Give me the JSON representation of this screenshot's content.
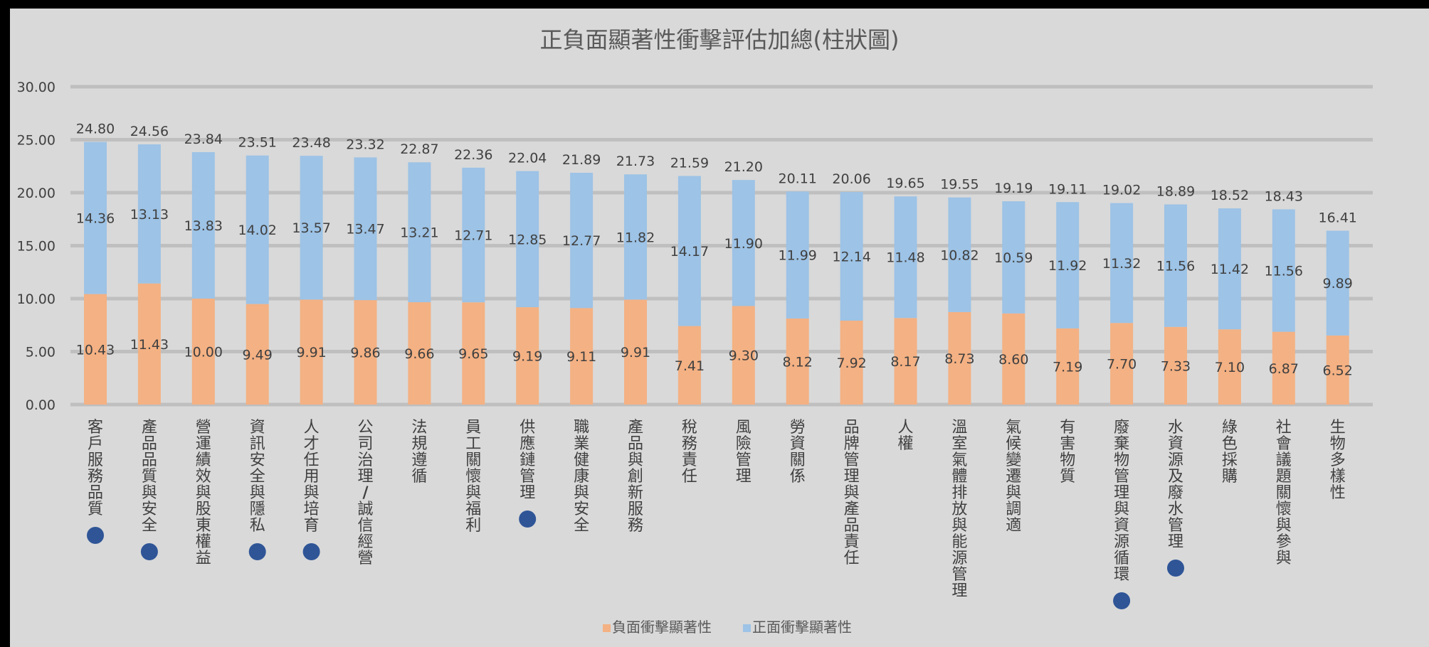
{
  "colors": {
    "negative": "#f4b183",
    "positive": "#9dc3e6",
    "grid": "#bfbfbf",
    "marker": "#2f5597",
    "background": "#d9d9d9"
  },
  "chart_data": {
    "type": "bar",
    "stacked": true,
    "title": "正負面顯著性衝擊評估加總(柱狀圖)",
    "xlabel": "",
    "ylabel": "",
    "ylim": [
      0,
      30
    ],
    "yticks": [
      "0.00",
      "5.00",
      "10.00",
      "15.00",
      "20.00",
      "25.00",
      "30.00"
    ],
    "grid": true,
    "legend_position": "bottom",
    "categories": [
      "客戶服務品質",
      "產品品質與安全",
      "營運績效與股東權益",
      "資訊安全與隱私",
      "人才任用與培育",
      "公司治理/誠信經營",
      "法規遵循",
      "員工關懷與福利",
      "供應鏈管理",
      "職業健康與安全",
      "產品與創新服務",
      "稅務責任",
      "風險管理",
      "勞資關係",
      "品牌管理與產品責任",
      "人權",
      "溫室氣體排放與能源管理",
      "氣候變遷與調適",
      "有害物質",
      "廢棄物管理與資源循環",
      "水資源及廢水管理",
      "綠色採購",
      "社會議題關懷與參與",
      "生物多樣性"
    ],
    "series": [
      {
        "name": "負面衝擊顯著性",
        "values": [
          10.43,
          11.43,
          10.0,
          9.49,
          9.91,
          9.86,
          9.66,
          9.65,
          9.19,
          9.11,
          9.91,
          7.41,
          9.3,
          8.12,
          7.92,
          8.17,
          8.73,
          8.6,
          7.19,
          7.7,
          7.33,
          7.1,
          6.87,
          6.52
        ],
        "labels": [
          "10.43",
          "11.43",
          "10.00",
          "9.49",
          "9.91",
          "9.86",
          "9.66",
          "9.65",
          "9.19",
          "9.11",
          "9.91",
          "7.41",
          "9.30",
          "8.12",
          "7.92",
          "8.17",
          "8.73",
          "8.60",
          "7.19",
          "7.70",
          "7.33",
          "7.10",
          "6.87",
          "6.52"
        ]
      },
      {
        "name": "正面衝擊顯著性",
        "values": [
          14.36,
          13.13,
          13.83,
          14.02,
          13.57,
          13.47,
          13.21,
          12.71,
          12.85,
          12.77,
          11.82,
          14.17,
          11.9,
          11.99,
          12.14,
          11.48,
          10.82,
          10.59,
          11.92,
          11.32,
          11.56,
          11.42,
          11.56,
          9.89
        ],
        "labels": [
          "14.36",
          "13.13",
          "13.83",
          "14.02",
          "13.57",
          "13.47",
          "13.21",
          "12.71",
          "12.85",
          "12.77",
          "11.82",
          "14.17",
          "11.90",
          "11.99",
          "12.14",
          "11.48",
          "10.82",
          "10.59",
          "11.92",
          "11.32",
          "11.56",
          "11.42",
          "11.56",
          "9.89"
        ]
      }
    ],
    "totals": [
      "24.80",
      "24.56",
      "23.84",
      "23.51",
      "23.48",
      "23.32",
      "22.87",
      "22.36",
      "22.04",
      "21.89",
      "21.73",
      "21.59",
      "21.20",
      "20.11",
      "20.06",
      "19.65",
      "19.55",
      "19.19",
      "19.11",
      "19.02",
      "18.89",
      "18.52",
      "18.43",
      "16.41"
    ],
    "markers": [
      true,
      true,
      false,
      true,
      true,
      false,
      false,
      false,
      true,
      false,
      false,
      false,
      false,
      false,
      false,
      false,
      false,
      false,
      false,
      true,
      true,
      false,
      false,
      false
    ]
  }
}
